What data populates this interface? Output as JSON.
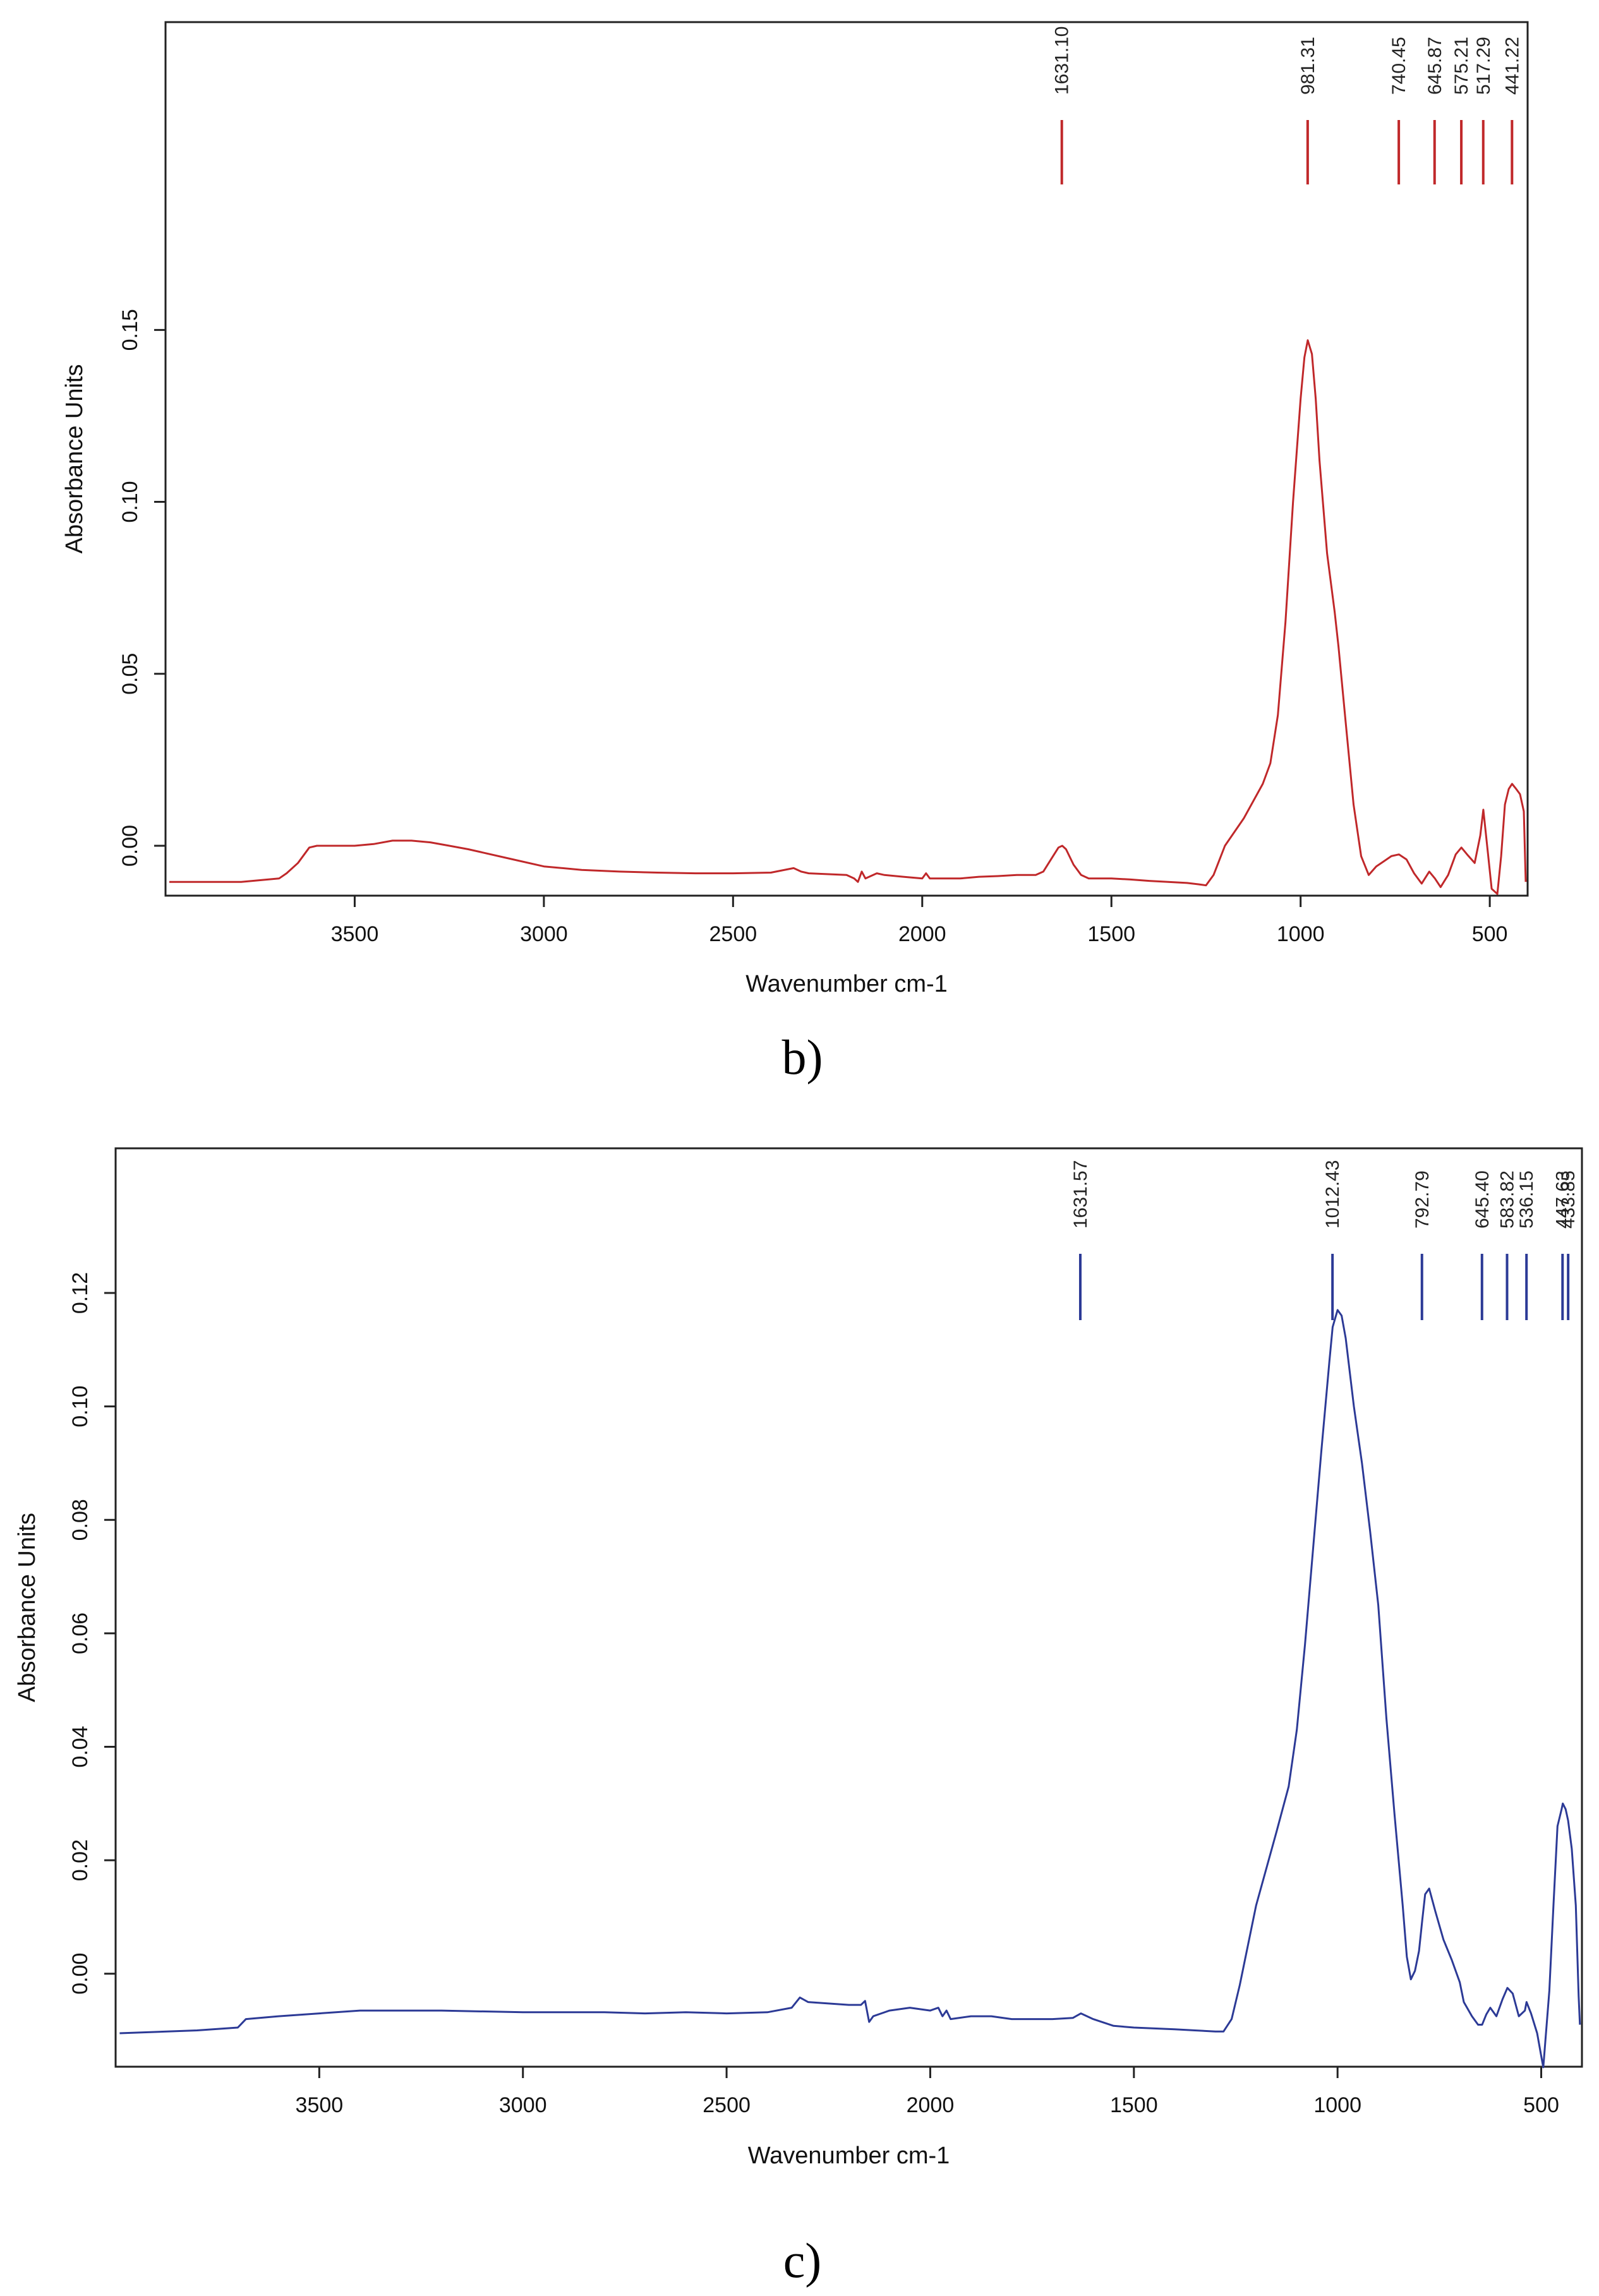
{
  "chart_data": [
    {
      "type": "line",
      "panel_label": "b)",
      "xlabel": "Wavenumber cm-1",
      "ylabel": "Absorbance Units",
      "xlim": [
        4000,
        400
      ],
      "ylim": [
        -0.0145,
        0.2395
      ],
      "x_axis_reversed": true,
      "xticks": [
        3500,
        3000,
        2500,
        2000,
        1500,
        1000,
        500
      ],
      "yticks": [
        0.0,
        0.05,
        0.1,
        0.15
      ],
      "ytick_labels": [
        "0.00",
        "0.05",
        "0.10",
        "0.15"
      ],
      "color": "#c0282a",
      "peak_labels": [
        "1631.10",
        "981.31",
        "740.45",
        "645.87",
        "575.21",
        "517.29",
        "441.22"
      ],
      "peak_positions": [
        1631.1,
        981.31,
        740.45,
        645.87,
        575.21,
        517.29,
        441.22
      ],
      "series": [
        {
          "x": [
            3990,
            3800,
            3700,
            3680,
            3650,
            3620,
            3600,
            3550,
            3500,
            3450,
            3400,
            3350,
            3300,
            3250,
            3200,
            3100,
            3000,
            2900,
            2800,
            2700,
            2600,
            2500,
            2400,
            2340,
            2320,
            2300,
            2200,
            2180,
            2170,
            2160,
            2150,
            2120,
            2100,
            2050,
            2000,
            1990,
            1980,
            1950,
            1900,
            1850,
            1800,
            1750,
            1700,
            1680,
            1660,
            1640,
            1630,
            1620,
            1600,
            1580,
            1560,
            1540,
            1500,
            1450,
            1400,
            1350,
            1300,
            1270,
            1250,
            1230,
            1200,
            1150,
            1100,
            1080,
            1060,
            1040,
            1020,
            1000,
            990,
            981,
            970,
            960,
            950,
            930,
            910,
            900,
            880,
            860,
            840,
            820,
            800,
            780,
            760,
            740,
            720,
            700,
            680,
            660,
            645,
            630,
            610,
            590,
            575,
            560,
            540,
            525,
            517,
            505,
            495,
            480,
            470,
            460,
            450,
            441,
            430,
            420,
            410,
            405
          ],
          "y": [
            -0.0105,
            -0.0105,
            -0.0095,
            -0.008,
            -0.005,
            -0.0005,
            0.0,
            0.0,
            0.0,
            0.0005,
            0.0015,
            0.0015,
            0.001,
            0.0,
            -0.001,
            -0.0035,
            -0.006,
            -0.007,
            -0.0075,
            -0.0078,
            -0.008,
            -0.008,
            -0.0078,
            -0.0065,
            -0.0075,
            -0.008,
            -0.0085,
            -0.0095,
            -0.0105,
            -0.0075,
            -0.0095,
            -0.008,
            -0.0085,
            -0.009,
            -0.0095,
            -0.008,
            -0.0095,
            -0.0095,
            -0.0095,
            -0.009,
            -0.0088,
            -0.0085,
            -0.0085,
            -0.0075,
            -0.004,
            -0.0005,
            0.0,
            -0.001,
            -0.0055,
            -0.0085,
            -0.0095,
            -0.0095,
            -0.0095,
            -0.0098,
            -0.0102,
            -0.0105,
            -0.0108,
            -0.0112,
            -0.0115,
            -0.0085,
            0.0,
            0.008,
            0.018,
            0.024,
            0.038,
            0.065,
            0.1,
            0.13,
            0.142,
            0.147,
            0.143,
            0.13,
            0.112,
            0.085,
            0.068,
            0.058,
            0.035,
            0.012,
            -0.003,
            -0.0085,
            -0.006,
            -0.0045,
            -0.003,
            -0.0025,
            -0.004,
            -0.008,
            -0.011,
            -0.0075,
            -0.0095,
            -0.012,
            -0.0085,
            -0.0025,
            -0.0005,
            -0.0025,
            -0.005,
            0.003,
            0.0105,
            -0.002,
            -0.0125,
            -0.014,
            -0.003,
            0.012,
            0.0165,
            0.018,
            0.0165,
            0.015,
            0.01,
            -0.0105
          ]
        }
      ]
    },
    {
      "type": "line",
      "panel_label": "c)",
      "xlabel": "Wavenumber cm-1",
      "ylabel": "Absorbance Units",
      "xlim": [
        4000,
        400
      ],
      "ylim": [
        -0.0164,
        0.1455
      ],
      "x_axis_reversed": true,
      "xticks": [
        3500,
        3000,
        2500,
        2000,
        1500,
        1000,
        500
      ],
      "yticks": [
        0.0,
        0.02,
        0.04,
        0.06,
        0.08,
        0.1,
        0.12
      ],
      "ytick_labels": [
        "0.00",
        "0.02",
        "0.04",
        "0.06",
        "0.08",
        "0.10",
        "0.12"
      ],
      "color": "#2c3a96",
      "peak_labels": [
        "1631.57",
        "1012.43",
        "792.79",
        "645.40",
        "583.82",
        "536.15",
        "447.63",
        "433.85"
      ],
      "peak_positions": [
        1631.57,
        1012.43,
        792.79,
        645.4,
        583.82,
        536.15,
        447.63,
        433.85
      ],
      "series": [
        {
          "x": [
            3990,
            3800,
            3700,
            3680,
            3600,
            3500,
            3400,
            3300,
            3200,
            3000,
            2800,
            2700,
            2600,
            2500,
            2400,
            2340,
            2320,
            2300,
            2200,
            2170,
            2160,
            2150,
            2140,
            2100,
            2050,
            2000,
            1980,
            1970,
            1960,
            1950,
            1900,
            1850,
            1800,
            1700,
            1650,
            1630,
            1600,
            1550,
            1500,
            1400,
            1350,
            1300,
            1280,
            1260,
            1240,
            1220,
            1200,
            1150,
            1120,
            1100,
            1080,
            1060,
            1040,
            1020,
            1012,
            1000,
            990,
            980,
            960,
            940,
            920,
            900,
            880,
            860,
            840,
            830,
            820,
            810,
            800,
            792,
            785,
            775,
            760,
            740,
            720,
            700,
            690,
            670,
            655,
            645,
            635,
            625,
            610,
            595,
            583,
            570,
            555,
            540,
            536,
            525,
            510,
            500,
            495,
            490,
            480,
            470,
            460,
            450,
            447,
            440,
            434,
            425,
            415,
            408,
            405
          ],
          "y": [
            -0.0105,
            -0.01,
            -0.0095,
            -0.008,
            -0.0075,
            -0.007,
            -0.0065,
            -0.0065,
            -0.0065,
            -0.0068,
            -0.0068,
            -0.007,
            -0.0068,
            -0.007,
            -0.0068,
            -0.006,
            -0.0042,
            -0.005,
            -0.0055,
            -0.0055,
            -0.0048,
            -0.0085,
            -0.0075,
            -0.0065,
            -0.006,
            -0.0065,
            -0.006,
            -0.0075,
            -0.0065,
            -0.008,
            -0.0075,
            -0.0075,
            -0.008,
            -0.008,
            -0.0078,
            -0.007,
            -0.008,
            -0.0092,
            -0.0095,
            -0.0098,
            -0.01,
            -0.0102,
            -0.0102,
            -0.008,
            -0.002,
            0.005,
            0.012,
            0.025,
            0.033,
            0.043,
            0.058,
            0.075,
            0.092,
            0.108,
            0.114,
            0.117,
            0.116,
            0.112,
            0.1,
            0.09,
            0.078,
            0.065,
            0.045,
            0.028,
            0.012,
            0.003,
            -0.001,
            0.0005,
            0.004,
            0.0095,
            0.014,
            0.015,
            0.011,
            0.006,
            0.0025,
            -0.0015,
            -0.005,
            -0.0075,
            -0.009,
            -0.009,
            -0.0072,
            -0.006,
            -0.0075,
            -0.0045,
            -0.0025,
            -0.0035,
            -0.0075,
            -0.0065,
            -0.005,
            -0.007,
            -0.0105,
            -0.0145,
            -0.0165,
            -0.012,
            -0.003,
            0.012,
            0.026,
            0.029,
            0.03,
            0.029,
            0.027,
            0.022,
            0.012,
            -0.004,
            -0.009
          ]
        }
      ]
    }
  ],
  "captions": {
    "b": "b)",
    "c": "c)"
  }
}
